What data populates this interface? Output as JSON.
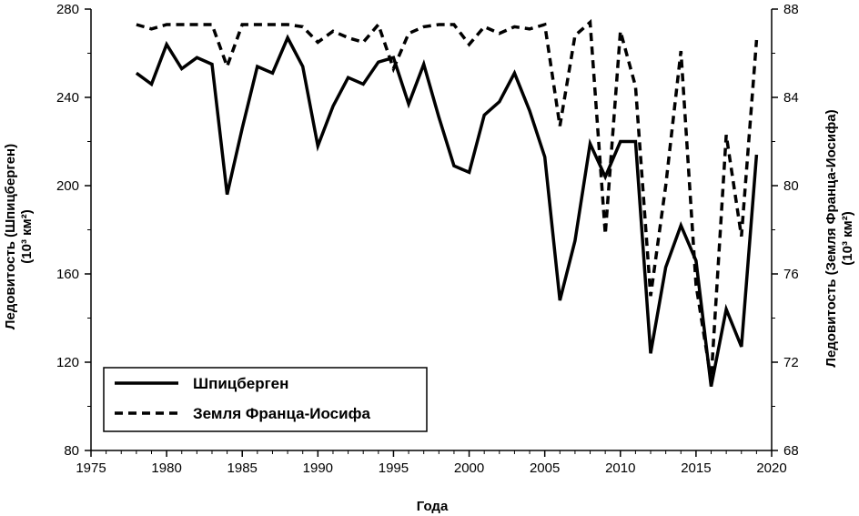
{
  "chart_data": {
    "type": "line",
    "xlabel": "Года",
    "ylabel_left": {
      "line1": "Ледовитость (Шпицберген)",
      "line2": "(10³ км²)"
    },
    "ylabel_right": {
      "line1": "Ледовитость (Земля Франца-Иосифа)",
      "line2": "(10³ км²)"
    },
    "xlim": [
      1975,
      2020
    ],
    "ylim_left": [
      80,
      280
    ],
    "ylim_right": [
      68,
      88
    ],
    "x_ticks": [
      1975,
      1980,
      1985,
      1990,
      1995,
      2000,
      2005,
      2010,
      2015,
      2020
    ],
    "y_left_ticks": [
      80,
      120,
      160,
      200,
      240,
      280
    ],
    "y_right_ticks": [
      68,
      72,
      76,
      80,
      84,
      88
    ],
    "grid": false,
    "legend_position": "bottom-left",
    "x": [
      1978,
      1979,
      1980,
      1981,
      1982,
      1983,
      1984,
      1985,
      1986,
      1987,
      1988,
      1989,
      1990,
      1991,
      1992,
      1993,
      1994,
      1995,
      1996,
      1997,
      1998,
      1999,
      2000,
      2001,
      2002,
      2003,
      2004,
      2005,
      2006,
      2007,
      2008,
      2009,
      2010,
      2011,
      2012,
      2013,
      2014,
      2015,
      2016,
      2017,
      2018,
      2019
    ],
    "series": [
      {
        "name": "Шпицберген",
        "axis": "left",
        "style": "solid",
        "values": [
          251,
          246,
          264,
          253,
          258,
          255,
          196,
          226,
          254,
          251,
          267,
          254,
          218,
          236,
          249,
          246,
          256,
          258,
          237,
          255,
          231,
          209,
          206,
          232,
          238,
          251,
          234,
          213,
          148,
          175,
          219,
          204,
          220,
          220,
          124,
          163,
          182,
          166,
          109,
          144,
          127,
          214
        ]
      },
      {
        "name": "Земля Франца-Иосифа",
        "axis": "right",
        "style": "dashed",
        "values": [
          87.3,
          87.1,
          87.3,
          87.3,
          87.3,
          87.3,
          85.4,
          87.3,
          87.3,
          87.3,
          87.3,
          87.2,
          86.5,
          87.0,
          86.7,
          86.5,
          87.3,
          85.3,
          86.9,
          87.2,
          87.3,
          87.3,
          86.4,
          87.2,
          86.9,
          87.2,
          87.1,
          87.3,
          82.7,
          86.8,
          87.4,
          77.8,
          87.0,
          84.5,
          75.0,
          80.0,
          86.1,
          75.5,
          71.2,
          82.3,
          77.7,
          86.6
        ]
      }
    ]
  }
}
